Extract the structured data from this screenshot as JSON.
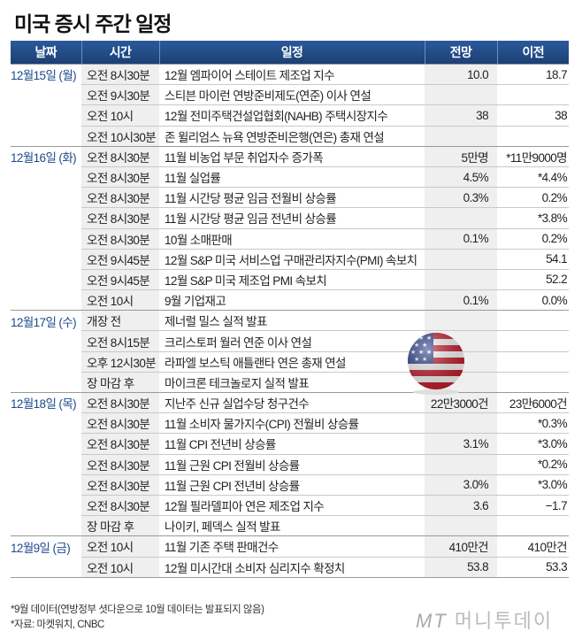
{
  "title": "미국 증시 주간 일정",
  "headers": [
    "날짜",
    "시간",
    "일정",
    "전망",
    "이전"
  ],
  "rows": [
    {
      "date": "12월15일 (월)",
      "time": "오전 8시30분",
      "event": "12월 엠파이어 스테이트 제조업 지수",
      "forecast": "10.0",
      "previous": "18.7"
    },
    {
      "date": "",
      "time": "오전 9시30분",
      "event": "스티븐 마이런 연방준비제도(연준) 이사 연설",
      "forecast": "",
      "previous": ""
    },
    {
      "date": "",
      "time": "오전 10시",
      "event": "12월 전미주택건설업협회(NAHB) 주택시장지수",
      "forecast": "38",
      "previous": "38"
    },
    {
      "date": "",
      "time": "오전 10시30분",
      "event": "존 윌리엄스 뉴욕 연방준비은행(연은) 총재 연설",
      "forecast": "",
      "previous": ""
    },
    {
      "date": "12월16일 (화)",
      "time": "오전 8시30분",
      "event": "11월 비농업 부문 취업자수 증가폭",
      "forecast": "5만명",
      "previous": "*11만9000명"
    },
    {
      "date": "",
      "time": "오전 8시30분",
      "event": "11월 실업률",
      "forecast": "4.5%",
      "previous": "*4.4%"
    },
    {
      "date": "",
      "time": "오전 8시30분",
      "event": "11월 시간당 평균 임금 전월비 상승률",
      "forecast": "0.3%",
      "previous": "0.2%"
    },
    {
      "date": "",
      "time": "오전 8시30분",
      "event": "11월 시간당 평균 임금 전년비 상승률",
      "forecast": "",
      "previous": "*3.8%"
    },
    {
      "date": "",
      "time": "오전 8시30분",
      "event": "10월 소매판매",
      "forecast": "0.1%",
      "previous": "0.2%"
    },
    {
      "date": "",
      "time": "오전 9시45분",
      "event": "12월 S&P 미국 서비스업 구매관리자지수(PMI) 속보치",
      "forecast": "",
      "previous": "54.1"
    },
    {
      "date": "",
      "time": "오전 9시45분",
      "event": "12월 S&P 미국 제조업 PMI 속보치",
      "forecast": "",
      "previous": "52.2"
    },
    {
      "date": "",
      "time": "오전 10시",
      "event": "9월 기업재고",
      "forecast": "0.1%",
      "previous": "0.0%"
    },
    {
      "date": "12월17일 (수)",
      "time": "개장 전",
      "event": "제너럴 밀스 실적 발표",
      "forecast": "",
      "previous": ""
    },
    {
      "date": "",
      "time": "오전 8시15분",
      "event": "크리스토퍼 월러 연준 이사 연설",
      "forecast": "",
      "previous": ""
    },
    {
      "date": "",
      "time": "오후 12시30분",
      "event": "라파엘 보스틱 애틀랜타 연은 총재 연설",
      "forecast": "",
      "previous": ""
    },
    {
      "date": "",
      "time": "장 마감 후",
      "event": "마이크론 테크놀로지 실적 발표",
      "forecast": "",
      "previous": ""
    },
    {
      "date": "12월18일 (목)",
      "time": "오전 8시30분",
      "event": "지난주 신규 실업수당 청구건수",
      "forecast": "22만3000건",
      "previous": "23만6000건"
    },
    {
      "date": "",
      "time": "오전 8시30분",
      "event": "11월 소비자 물가지수(CPI) 전월비 상승률",
      "forecast": "",
      "previous": "*0.3%"
    },
    {
      "date": "",
      "time": "오전 8시30분",
      "event": "11월 CPI 전년비 상승률",
      "forecast": "3.1%",
      "previous": "*3.0%"
    },
    {
      "date": "",
      "time": "오전 8시30분",
      "event": "11월 근원 CPI 전월비 상승률",
      "forecast": "",
      "previous": "*0.2%"
    },
    {
      "date": "",
      "time": "오전 8시30분",
      "event": "11월 근원 CPI 전년비 상승률",
      "forecast": "3.0%",
      "previous": "*3.0%"
    },
    {
      "date": "",
      "time": "오전 8시30분",
      "event": "12월 필라델피아 연은 제조업 지수",
      "forecast": "3.6",
      "previous": "−1.7"
    },
    {
      "date": "",
      "time": "장 마감 후",
      "event": "나이키, 페덱스 실적 발표",
      "forecast": "",
      "previous": ""
    },
    {
      "date": "12월9일 (금)",
      "time": "오전 10시",
      "event": "11월 기존 주택 판매건수",
      "forecast": "410만건",
      "previous": "410만건"
    },
    {
      "date": "",
      "time": "오전 10시",
      "event": "12월 미시간대 소비자 심리지수 확정치",
      "forecast": "53.8",
      "previous": "53.3"
    }
  ],
  "notes": [
    "*9월 데이터(연방정부 셧다운으로 10월 데이터는 발표되지 않음)",
    "*자료: 마켓워치, CNBC"
  ],
  "logo": {
    "mark": "MT",
    "text": "머니투데이"
  },
  "colors": {
    "header": "#1f4a86",
    "date_text": "#1c4a8c",
    "shade": "#efefef"
  },
  "icons": {
    "flag": "us-flag-icon"
  }
}
